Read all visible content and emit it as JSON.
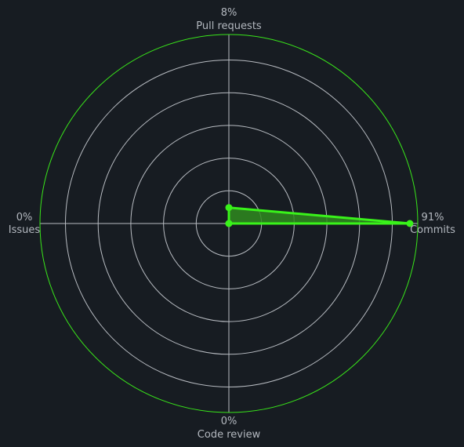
{
  "chart_data": {
    "type": "radar",
    "axes": [
      {
        "name": "Pull requests",
        "value_label": "8%",
        "value": 8
      },
      {
        "name": "Commits",
        "value_label": "91%",
        "value": 91
      },
      {
        "name": "Code review",
        "value_label": "0%",
        "value": 0
      },
      {
        "name": "Issues",
        "value_label": "0%",
        "value": 0
      }
    ],
    "r_max": 95,
    "rings": 5,
    "colors": {
      "background": "#171c22",
      "grid": "#b8bcc2",
      "outer_ring": "#39e61a",
      "series": "#39f21a",
      "fill": "#2f8a1e",
      "label": "#b3b8bf"
    }
  }
}
